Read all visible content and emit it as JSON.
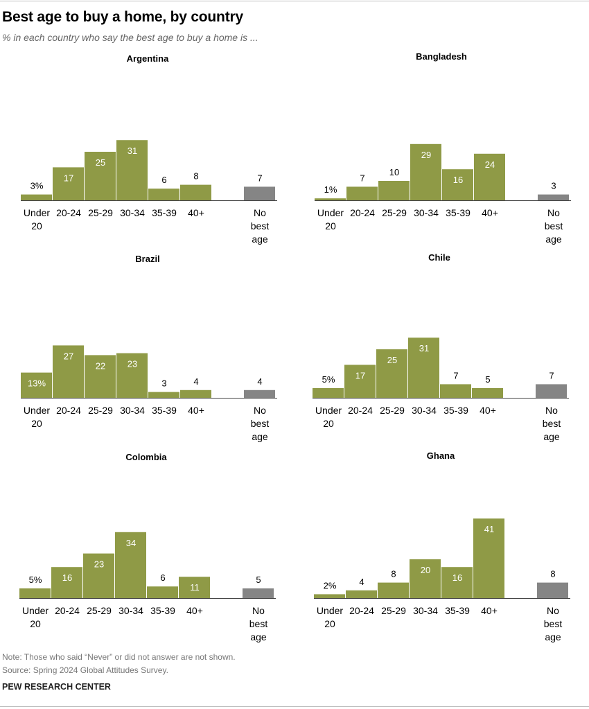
{
  "title": "Best age to buy a home, by country",
  "subtitle": "% in each country who say the best age to buy a home is ...",
  "note": "Note: Those who said “Never” or did not answer are not shown.",
  "source": "Source: Spring 2024 Global Attitudes Survey.",
  "footer": "PEW RESEARCH CENTER",
  "colors": {
    "bar": "#8f9a46",
    "no_best_age_bar": "#858585",
    "label_inside": "#ffffff",
    "label_outside": "#000000"
  },
  "chart_data": [
    {
      "type": "bar",
      "title": "Argentina",
      "categories": [
        "Under 20",
        "20-24",
        "25-29",
        "30-34",
        "35-39",
        "40+",
        "No best age"
      ],
      "values": [
        3,
        17,
        25,
        31,
        6,
        8,
        7
      ],
      "labels": [
        "3%",
        "17",
        "25",
        "31",
        "6",
        "8",
        "7"
      ]
    },
    {
      "type": "bar",
      "title": "Bangladesh",
      "categories": [
        "Under 20",
        "20-24",
        "25-29",
        "30-34",
        "35-39",
        "40+",
        "No best age"
      ],
      "values": [
        1,
        7,
        10,
        29,
        16,
        24,
        3
      ],
      "labels": [
        "1%",
        "7",
        "10",
        "29",
        "16",
        "24",
        "3"
      ]
    },
    {
      "type": "bar",
      "title": "Brazil",
      "categories": [
        "Under 20",
        "20-24",
        "25-29",
        "30-34",
        "35-39",
        "40+",
        "No best age"
      ],
      "values": [
        13,
        27,
        22,
        23,
        3,
        4,
        4
      ],
      "labels": [
        "13%",
        "27",
        "22",
        "23",
        "3",
        "4",
        "4"
      ]
    },
    {
      "type": "bar",
      "title": "Chile",
      "categories": [
        "Under 20",
        "20-24",
        "25-29",
        "30-34",
        "35-39",
        "40+",
        "No best age"
      ],
      "values": [
        5,
        17,
        25,
        31,
        7,
        5,
        7
      ],
      "labels": [
        "5%",
        "17",
        "25",
        "31",
        "7",
        "5",
        "7"
      ]
    },
    {
      "type": "bar",
      "title": "Colombia",
      "categories": [
        "Under 20",
        "20-24",
        "25-29",
        "30-34",
        "35-39",
        "40+",
        "No best age"
      ],
      "values": [
        5,
        16,
        23,
        34,
        6,
        11,
        5
      ],
      "labels": [
        "5%",
        "16",
        "23",
        "34",
        "6",
        "11",
        "5"
      ]
    },
    {
      "type": "bar",
      "title": "Ghana",
      "categories": [
        "Under 20",
        "20-24",
        "25-29",
        "30-34",
        "35-39",
        "40+",
        "No best age"
      ],
      "values": [
        2,
        4,
        8,
        20,
        16,
        41,
        8
      ],
      "labels": [
        "2%",
        "4",
        "8",
        "20",
        "16",
        "41",
        "8"
      ]
    }
  ]
}
